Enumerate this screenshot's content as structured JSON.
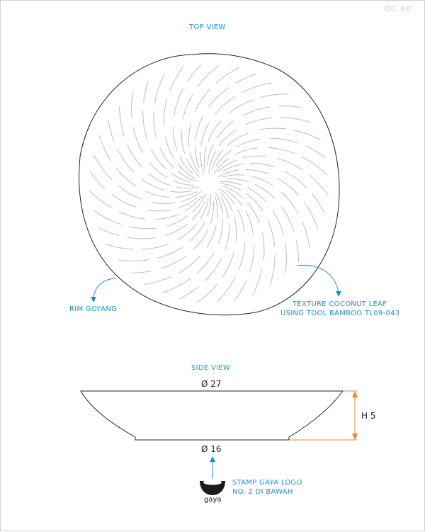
{
  "drawing": {
    "code": "DC 60"
  },
  "top_view": {
    "title": "TOP VIEW",
    "texture_label_line1": "TEXTURE COCONUT LEAF",
    "texture_label_line2": "USING TOOL BAMBOO TL09-043",
    "rim_label": "RIM GOYANG"
  },
  "side_view": {
    "title": "SIDE VIEW",
    "top_diameter": "Ø 27",
    "bottom_diameter": "Ø 16",
    "height": "H 5"
  },
  "stamp": {
    "line1": "STAMP GAYA LOGO",
    "line2": "NO. 2 DI BAWAH",
    "logo_text": "gaya"
  },
  "colors": {
    "annotation": "#1f8fc9",
    "dimension": "#ef8a24",
    "outline": "#222222",
    "texture": "#bdbdbd"
  }
}
